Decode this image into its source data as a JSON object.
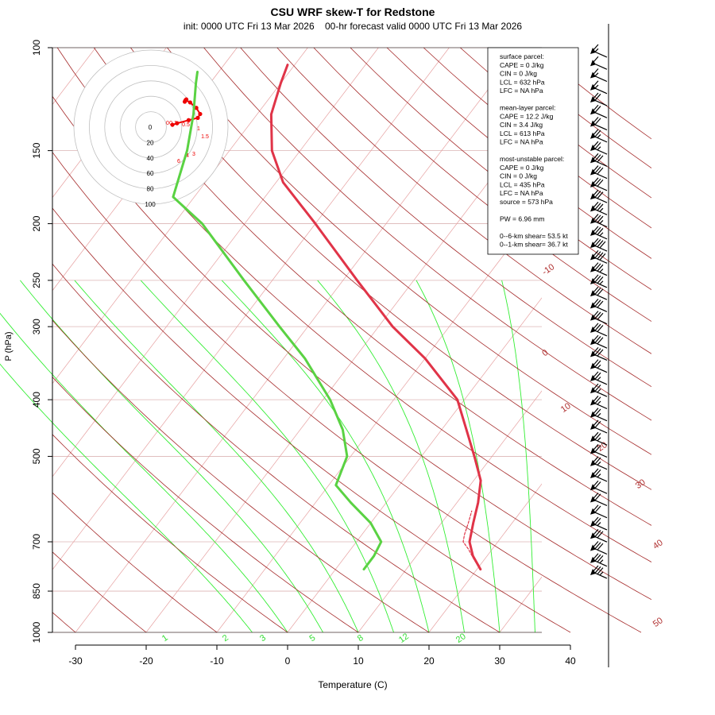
{
  "chart_data": {
    "type": "line",
    "title": "CSU WRF skew-T for Redstone",
    "subtitle": "init: 0000 UTC Fri 13 Mar 2026    00-hr forecast valid 0000 UTC Fri 13 Mar 2026",
    "xlabel": "Temperature (C)",
    "ylabel": "P (hPa)",
    "xlim": [
      -33,
      52
    ],
    "ylim": [
      1000,
      100
    ],
    "pressure_ticks": [
      100,
      150,
      200,
      250,
      300,
      400,
      500,
      700,
      850,
      1000
    ],
    "temp_ticks": [
      -30,
      -20,
      -10,
      0,
      10,
      20,
      30,
      40
    ],
    "isotherm_labels": [
      "-10",
      "0",
      "10",
      "20",
      "30",
      "40",
      "50"
    ],
    "mixing_ratio_labels": [
      "1",
      "2",
      "3",
      "5",
      "8",
      "12",
      "20"
    ],
    "series": [
      {
        "name": "Temperature",
        "color": "#e03448",
        "points": [
          [
            20.5,
            780
          ],
          [
            18,
            740
          ],
          [
            16,
            700
          ],
          [
            14.5,
            650
          ],
          [
            13,
            600
          ],
          [
            11,
            550
          ],
          [
            7.5,
            500
          ],
          [
            3.5,
            450
          ],
          [
            -1,
            400
          ],
          [
            -10,
            340
          ],
          [
            -18,
            300
          ],
          [
            -28,
            250
          ],
          [
            -40,
            200
          ],
          [
            -49,
            170
          ],
          [
            -54,
            150
          ],
          [
            -58,
            130
          ],
          [
            -60,
            115
          ],
          [
            -61,
            107
          ]
        ]
      },
      {
        "name": "Dewpoint",
        "color": "#5ad243",
        "points": [
          [
            4,
            780
          ],
          [
            4,
            740
          ],
          [
            3.5,
            700
          ],
          [
            0,
            650
          ],
          [
            -5,
            600
          ],
          [
            -9,
            560
          ],
          [
            -10.5,
            500
          ],
          [
            -14,
            450
          ],
          [
            -19,
            400
          ],
          [
            -27,
            340
          ],
          [
            -34,
            300
          ],
          [
            -44,
            250
          ],
          [
            -56,
            200
          ],
          [
            -63,
            180
          ],
          [
            -66,
            150
          ],
          [
            -69,
            130
          ],
          [
            -72,
            115
          ],
          [
            -73,
            110
          ]
        ]
      },
      {
        "name": "Surface parcel",
        "color": "#e03448",
        "dashed": true,
        "points": [
          [
            20.5,
            780
          ],
          [
            18.5,
            750
          ],
          [
            16.6,
            720
          ],
          [
            15.1,
            700
          ],
          [
            14.5,
            680
          ],
          [
            13.8,
            650
          ],
          [
            13,
            620
          ]
        ]
      }
    ],
    "hodograph": {
      "radii": [
        20,
        40,
        60,
        80,
        100
      ],
      "ring_labels": [
        "0",
        "20",
        "40",
        "60",
        "80",
        "100"
      ],
      "height_labels": [
        "0",
        "0.1",
        "0.5",
        "1",
        "1.5",
        "3",
        "4",
        "6"
      ],
      "trace_uv": [
        [
          -1,
          -3
        ],
        [
          5,
          -5
        ],
        [
          20,
          -9
        ],
        [
          32,
          -12
        ],
        [
          35,
          -17
        ],
        [
          30,
          -25
        ],
        [
          22,
          -32
        ],
        [
          16,
          -35
        ],
        [
          15,
          -33
        ],
        [
          17,
          -36
        ]
      ]
    },
    "wind_barbs": {
      "speeds_kt": [
        15,
        10,
        15,
        15,
        20,
        20,
        20,
        25,
        25,
        30,
        30,
        30,
        30,
        35,
        35,
        35,
        40,
        40,
        35,
        35,
        30,
        30,
        30,
        30,
        30,
        30,
        25,
        25,
        25,
        25,
        25,
        20,
        25,
        20,
        25,
        25,
        20,
        20,
        20,
        25,
        30,
        30,
        35,
        35
      ],
      "direction_deg": 300
    },
    "legend": {
      "position": "top-right",
      "lines": [
        "surface parcel:",
        "CAPE = 0 J/kg",
        "CIN = 0 J/kg",
        "LCL = 632 hPa",
        "LFC = NA hPa",
        "",
        "mean-layer parcel:",
        "CAPE = 12.2 J/kg",
        "CIN = 3.4 J/kg",
        "LCL = 613 hPa",
        "LFC = NA hPa",
        "",
        "most-unstable parcel:",
        "CAPE = 0 J/kg",
        "CIN = 0 J/kg",
        "LCL = 435 hPa",
        "LFC = NA hPa",
        "source = 573 hPa",
        "",
        "PW =  6.96 mm",
        "",
        "0--6-km shear= 53.5 kt",
        "0--1-km shear= 36.7 kt"
      ]
    }
  },
  "colors": {
    "isotherm_label": "#b03030",
    "isotherm": "#e6a0a0",
    "dry_adiabat": "#a52a2a",
    "moist_adiabat": "#33ee33",
    "mixing_ratio": "#33dd33",
    "isobar": "#dcb4b4",
    "hodo_trace": "#ee0000",
    "hodo_ring": "#c0c0c0"
  }
}
